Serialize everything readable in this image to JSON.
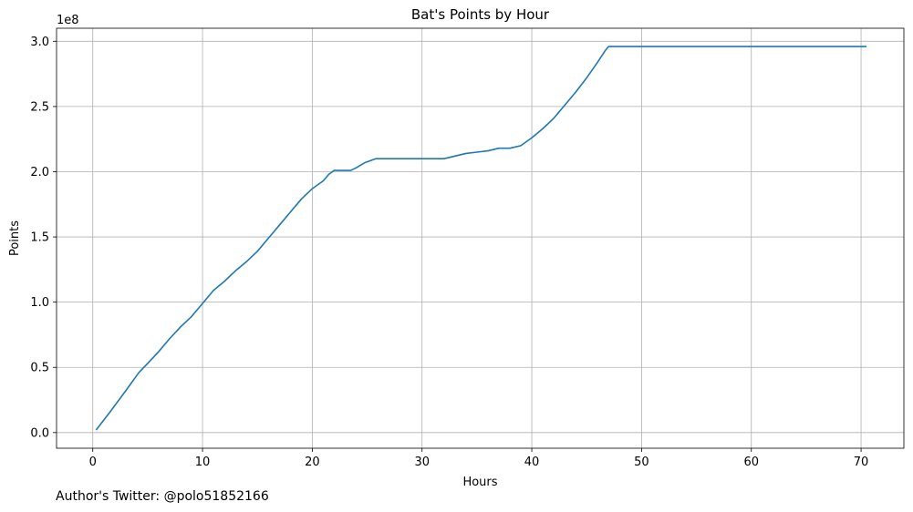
{
  "chart_data": {
    "type": "line",
    "title": "Bat's Points by Hour",
    "xlabel": "Hours",
    "ylabel": "Points",
    "y_offset_label": "1e8",
    "xlim": [
      -3.3,
      73.9
    ],
    "ylim": [
      -0.12,
      3.1
    ],
    "y_scale_note": "values in units of 1e8",
    "x_ticks": [
      0,
      10,
      20,
      30,
      40,
      50,
      60,
      70
    ],
    "y_ticks": [
      0.0,
      0.5,
      1.0,
      1.5,
      2.0,
      2.5,
      3.0
    ],
    "y_tick_labels": [
      "0.0",
      "0.5",
      "1.0",
      "1.5",
      "2.0",
      "2.5",
      "3.0"
    ],
    "grid": true,
    "line_color": "#1f77b4",
    "series": [
      {
        "x": [
          0.3,
          1.5,
          3,
          4.2,
          5,
          6,
          7,
          8,
          9,
          10,
          11,
          12,
          13,
          14,
          15,
          16,
          17,
          18,
          19,
          20,
          21,
          21.5,
          22,
          23,
          23.5,
          24,
          24.8,
          25.8,
          27,
          30,
          32,
          33,
          34,
          35,
          36,
          37,
          38,
          39,
          40,
          41,
          42,
          43,
          44,
          45,
          46,
          46.7,
          47,
          50,
          60,
          70,
          70.5
        ],
        "y": [
          0.02,
          0.15,
          0.32,
          0.46,
          0.53,
          0.62,
          0.72,
          0.81,
          0.89,
          0.99,
          1.09,
          1.16,
          1.24,
          1.31,
          1.39,
          1.49,
          1.59,
          1.69,
          1.79,
          1.87,
          1.93,
          1.98,
          2.01,
          2.01,
          2.01,
          2.03,
          2.07,
          2.1,
          2.1,
          2.1,
          2.1,
          2.12,
          2.14,
          2.15,
          2.16,
          2.18,
          2.18,
          2.2,
          2.26,
          2.33,
          2.41,
          2.51,
          2.61,
          2.72,
          2.84,
          2.93,
          2.96,
          2.96,
          2.96,
          2.96,
          2.96
        ]
      }
    ]
  },
  "footer": {
    "text": "Author's Twitter: @polo51852166"
  }
}
